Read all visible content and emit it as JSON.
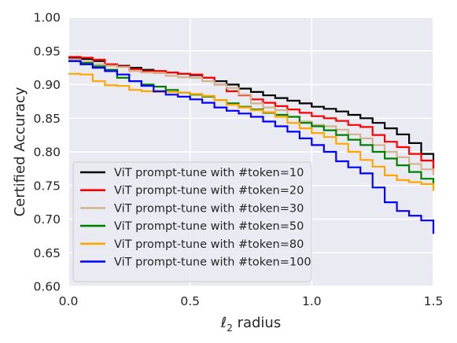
{
  "chart_data": {
    "type": "line",
    "title": "",
    "xlabel": "ℓ2 radius",
    "xlabel_main": "ℓ",
    "xlabel_sub": "2",
    "xlabel_rest": " radius",
    "ylabel": "Certified Accuracy",
    "xlim": [
      0.0,
      1.5
    ],
    "ylim": [
      0.6,
      1.0
    ],
    "xticks": [
      "0.0",
      "0.5",
      "1.0",
      "1.5"
    ],
    "yticks": [
      "0.60",
      "0.65",
      "0.70",
      "0.75",
      "0.80",
      "0.85",
      "0.90",
      "0.95",
      "1.00"
    ],
    "grid": true,
    "legend_position": "lower-left",
    "background": "#eaeaf2",
    "series": [
      {
        "name": "ViT prompt-tune with #token=10",
        "color": "#000000",
        "x": [
          0.0,
          0.05,
          0.1,
          0.15,
          0.2,
          0.25,
          0.3,
          0.35,
          0.4,
          0.45,
          0.5,
          0.55,
          0.6,
          0.65,
          0.7,
          0.75,
          0.8,
          0.85,
          0.9,
          0.95,
          1.0,
          1.05,
          1.1,
          1.15,
          1.2,
          1.25,
          1.3,
          1.35,
          1.4,
          1.45,
          1.5
        ],
        "y": [
          0.94,
          0.938,
          0.935,
          0.93,
          0.928,
          0.925,
          0.922,
          0.92,
          0.918,
          0.916,
          0.914,
          0.91,
          0.905,
          0.9,
          0.894,
          0.889,
          0.884,
          0.88,
          0.876,
          0.872,
          0.867,
          0.864,
          0.86,
          0.855,
          0.85,
          0.843,
          0.835,
          0.826,
          0.813,
          0.797,
          0.775
        ]
      },
      {
        "name": "ViT prompt-tune with #token=20",
        "color": "#ff0000",
        "x": [
          0.0,
          0.05,
          0.1,
          0.15,
          0.2,
          0.25,
          0.3,
          0.35,
          0.4,
          0.45,
          0.5,
          0.55,
          0.6,
          0.65,
          0.7,
          0.75,
          0.8,
          0.85,
          0.9,
          0.95,
          1.0,
          1.05,
          1.1,
          1.15,
          1.2,
          1.25,
          1.3,
          1.35,
          1.4,
          1.45,
          1.5
        ],
        "y": [
          0.941,
          0.94,
          0.937,
          0.93,
          0.927,
          0.923,
          0.92,
          0.92,
          0.918,
          0.916,
          0.915,
          0.91,
          0.9,
          0.89,
          0.884,
          0.878,
          0.873,
          0.868,
          0.863,
          0.858,
          0.853,
          0.85,
          0.846,
          0.84,
          0.837,
          0.825,
          0.815,
          0.807,
          0.797,
          0.787,
          0.77
        ]
      },
      {
        "name": "ViT prompt-tune with #token=30",
        "color": "#d2b48c",
        "x": [
          0.0,
          0.05,
          0.1,
          0.15,
          0.2,
          0.25,
          0.3,
          0.35,
          0.4,
          0.45,
          0.5,
          0.55,
          0.6,
          0.65,
          0.7,
          0.75,
          0.8,
          0.85,
          0.9,
          0.95,
          1.0,
          1.05,
          1.1,
          1.15,
          1.2,
          1.25,
          1.3,
          1.35,
          1.4,
          1.45,
          1.5
        ],
        "y": [
          0.937,
          0.934,
          0.93,
          0.928,
          0.926,
          0.92,
          0.918,
          0.917,
          0.913,
          0.911,
          0.91,
          0.905,
          0.9,
          0.895,
          0.885,
          0.872,
          0.866,
          0.862,
          0.852,
          0.845,
          0.84,
          0.838,
          0.833,
          0.826,
          0.82,
          0.81,
          0.8,
          0.792,
          0.782,
          0.774,
          0.765
        ]
      },
      {
        "name": "ViT prompt-tune with #token=50",
        "color": "#008000",
        "x": [
          0.0,
          0.05,
          0.1,
          0.15,
          0.2,
          0.25,
          0.3,
          0.35,
          0.4,
          0.45,
          0.5,
          0.55,
          0.6,
          0.65,
          0.7,
          0.75,
          0.8,
          0.85,
          0.9,
          0.95,
          1.0,
          1.05,
          1.1,
          1.15,
          1.2,
          1.25,
          1.3,
          1.35,
          1.4,
          1.45,
          1.5
        ],
        "y": [
          0.935,
          0.932,
          0.927,
          0.922,
          0.91,
          0.905,
          0.9,
          0.897,
          0.892,
          0.888,
          0.885,
          0.882,
          0.877,
          0.872,
          0.867,
          0.863,
          0.858,
          0.855,
          0.852,
          0.843,
          0.838,
          0.832,
          0.825,
          0.818,
          0.81,
          0.8,
          0.79,
          0.78,
          0.77,
          0.76,
          0.748
        ]
      },
      {
        "name": "ViT prompt-tune with #token=80",
        "color": "#ffa500",
        "x": [
          0.0,
          0.05,
          0.1,
          0.15,
          0.2,
          0.25,
          0.3,
          0.35,
          0.4,
          0.45,
          0.5,
          0.55,
          0.6,
          0.65,
          0.7,
          0.75,
          0.8,
          0.85,
          0.9,
          0.95,
          1.0,
          1.05,
          1.1,
          1.15,
          1.2,
          1.25,
          1.3,
          1.35,
          1.4,
          1.45,
          1.5
        ],
        "y": [
          0.916,
          0.915,
          0.905,
          0.899,
          0.898,
          0.892,
          0.89,
          0.889,
          0.889,
          0.888,
          0.886,
          0.883,
          0.877,
          0.87,
          0.866,
          0.862,
          0.859,
          0.852,
          0.843,
          0.835,
          0.828,
          0.822,
          0.812,
          0.8,
          0.788,
          0.778,
          0.765,
          0.758,
          0.755,
          0.752,
          0.742
        ]
      },
      {
        "name": "ViT prompt-tune with #token=100",
        "color": "#0000ff",
        "x": [
          0.0,
          0.05,
          0.1,
          0.15,
          0.2,
          0.25,
          0.3,
          0.35,
          0.4,
          0.45,
          0.5,
          0.55,
          0.6,
          0.65,
          0.7,
          0.75,
          0.8,
          0.85,
          0.9,
          0.95,
          1.0,
          1.05,
          1.1,
          1.15,
          1.2,
          1.25,
          1.3,
          1.35,
          1.4,
          1.45,
          1.5
        ],
        "y": [
          0.935,
          0.93,
          0.925,
          0.92,
          0.915,
          0.905,
          0.898,
          0.89,
          0.885,
          0.882,
          0.878,
          0.873,
          0.866,
          0.861,
          0.857,
          0.852,
          0.845,
          0.838,
          0.83,
          0.82,
          0.81,
          0.8,
          0.786,
          0.777,
          0.768,
          0.747,
          0.725,
          0.712,
          0.705,
          0.698,
          0.678
        ]
      }
    ]
  }
}
